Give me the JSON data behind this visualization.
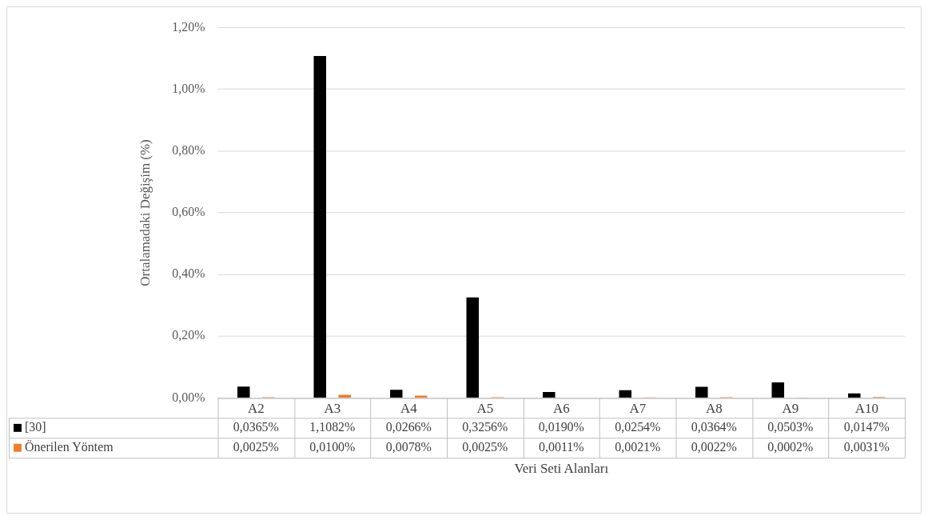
{
  "chart_data": {
    "type": "bar",
    "xlabel": "Veri Seti Alanları",
    "ylabel": "Ortalamadaki Değişim (%)",
    "categories": [
      "A2",
      "A3",
      "A4",
      "A5",
      "A6",
      "A7",
      "A8",
      "A9",
      "A10"
    ],
    "series": [
      {
        "name": "[30]",
        "color": "#000000",
        "values": [
          0.0365,
          1.1082,
          0.0266,
          0.3256,
          0.019,
          0.0254,
          0.0364,
          0.0503,
          0.0147
        ],
        "value_labels": [
          "0,0365%",
          "1,1082%",
          "0,0266%",
          "0,3256%",
          "0,0190%",
          "0,0254%",
          "0,0364%",
          "0,0503%",
          "0,0147%"
        ]
      },
      {
        "name": "Önerilen Yöntem",
        "color": "#ed7d31",
        "values": [
          0.0025,
          0.01,
          0.0078,
          0.0025,
          0.0011,
          0.0021,
          0.0022,
          0.0002,
          0.0031
        ],
        "value_labels": [
          "0,0025%",
          "0,0100%",
          "0,0078%",
          "0,0025%",
          "0,0011%",
          "0,0021%",
          "0,0022%",
          "0,0002%",
          "0,0031%"
        ]
      }
    ],
    "ylim": [
      0,
      1.2
    ],
    "yticks": [
      {
        "value": 0,
        "label": "0,00%"
      },
      {
        "value": 0.2,
        "label": "0,20%"
      },
      {
        "value": 0.4,
        "label": "0,40%"
      },
      {
        "value": 0.6,
        "label": "0,60%"
      },
      {
        "value": 0.8,
        "label": "0,80%"
      },
      {
        "value": 1.0,
        "label": "1,00%"
      },
      {
        "value": 1.2,
        "label": "1,20%"
      }
    ],
    "grid": "y",
    "legend": "bottom"
  }
}
